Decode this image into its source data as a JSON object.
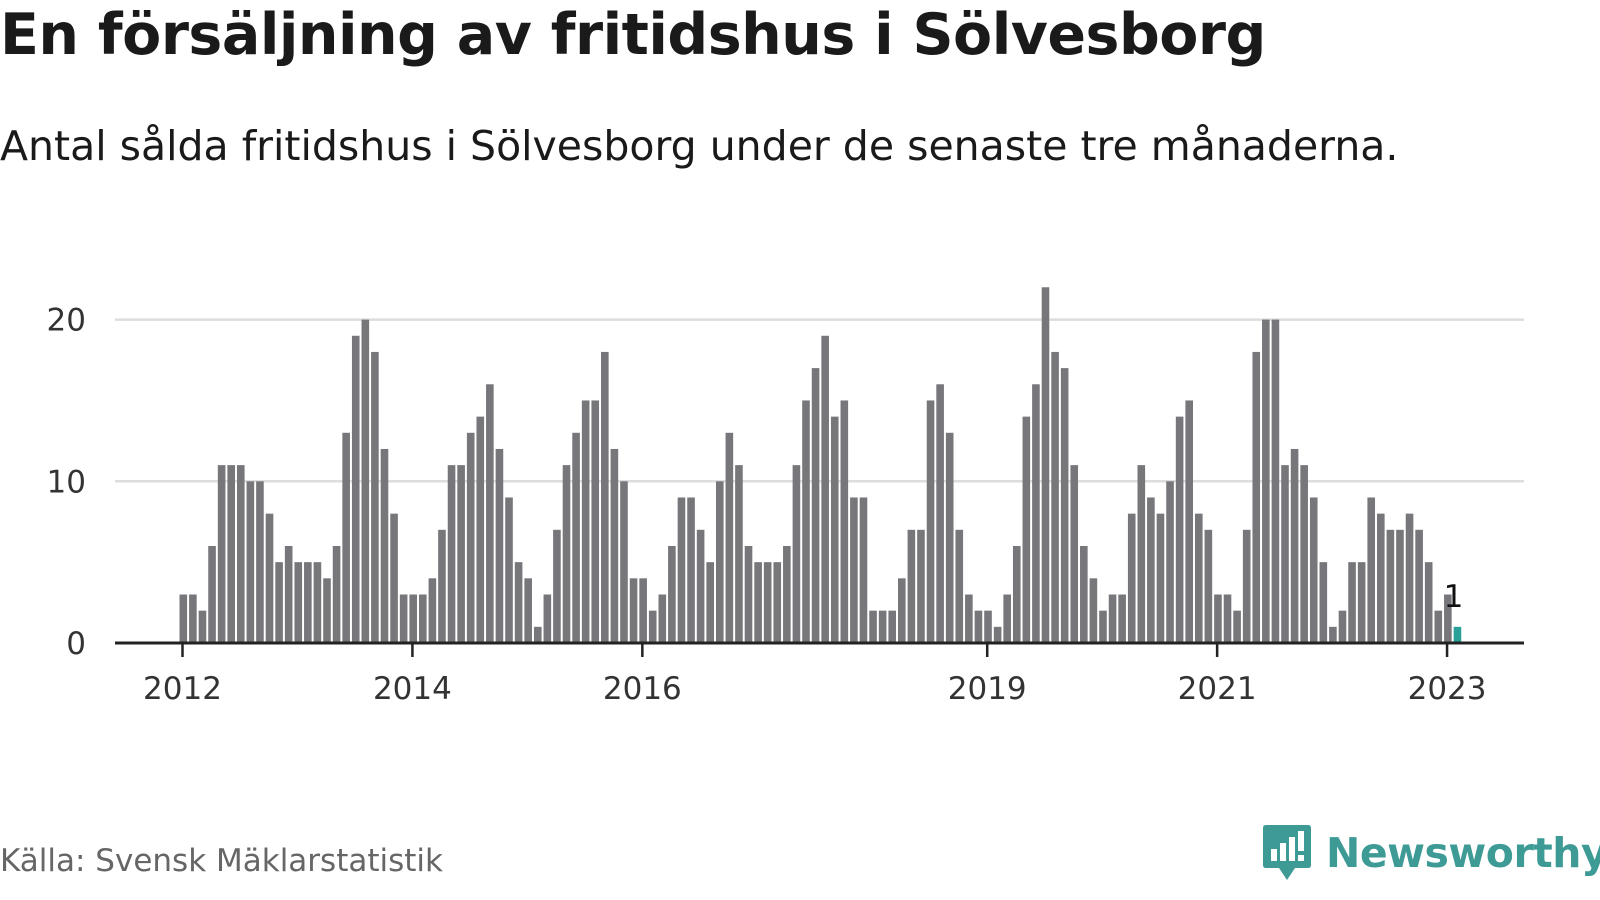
{
  "header": {
    "title": "En försäljning av fritidshus i Sölvesborg",
    "subtitle": "Antal sålda fritidshus i Sölvesborg under de senaste tre månaderna."
  },
  "footer": {
    "source": "Källa: Svensk Mäklarstatistik",
    "brand": "Newsworthy"
  },
  "colors": {
    "bar": "#77767b",
    "highlight": "#2aa198",
    "grid": "#dddddd",
    "axis": "#222222",
    "brand": "#3d9a95"
  },
  "chart_data": {
    "type": "bar",
    "title": "En försäljning av fritidshus i Sölvesborg",
    "subtitle": "Antal sålda fritidshus i Sölvesborg under de senaste tre månaderna.",
    "xlabel": "",
    "ylabel": "",
    "ylim": [
      0,
      22
    ],
    "yticks": [
      0,
      10,
      20
    ],
    "grid": true,
    "x_tick_labels": [
      {
        "label": "2012",
        "index": 0
      },
      {
        "label": "2014",
        "index": 24
      },
      {
        "label": "2016",
        "index": 48
      },
      {
        "label": "2019",
        "index": 84
      },
      {
        "label": "2021",
        "index": 108
      },
      {
        "label": "2023",
        "index": 132
      }
    ],
    "values": [
      3,
      3,
      2,
      6,
      11,
      11,
      11,
      10,
      10,
      8,
      5,
      6,
      5,
      5,
      5,
      4,
      6,
      13,
      19,
      20,
      18,
      12,
      8,
      3,
      3,
      3,
      4,
      7,
      11,
      11,
      13,
      14,
      16,
      12,
      9,
      5,
      4,
      1,
      3,
      7,
      11,
      13,
      15,
      15,
      18,
      12,
      10,
      4,
      4,
      2,
      3,
      6,
      9,
      9,
      7,
      5,
      10,
      13,
      11,
      6,
      5,
      5,
      5,
      6,
      11,
      15,
      17,
      19,
      14,
      15,
      9,
      9,
      2,
      2,
      2,
      4,
      7,
      7,
      15,
      16,
      13,
      7,
      3,
      2,
      2,
      1,
      3,
      6,
      14,
      16,
      22,
      18,
      17,
      11,
      6,
      4,
      2,
      3,
      3,
      8,
      11,
      9,
      8,
      10,
      14,
      15,
      8,
      7,
      3,
      3,
      2,
      7,
      18,
      20,
      20,
      11,
      12,
      11,
      9,
      5,
      1,
      2,
      5,
      5,
      9,
      8,
      7,
      7,
      8,
      7,
      5,
      2,
      3,
      1
    ],
    "highlight_index": 133,
    "annotation": {
      "index": 133,
      "text": "1"
    }
  }
}
